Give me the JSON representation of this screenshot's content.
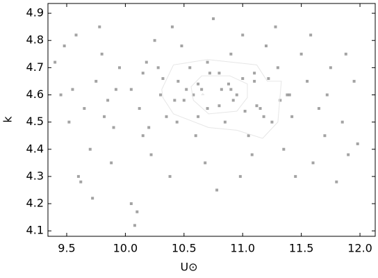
{
  "chart_data": {
    "type": "scatter",
    "xlabel": "U⊙",
    "ylabel": "k",
    "xlim": [
      9.34,
      12.13
    ],
    "ylim": [
      4.08,
      4.936
    ],
    "xticks": [
      9.5,
      {
        "value": 10.0,
        "label": "10.0"
      },
      10.5,
      {
        "value": 11.0,
        "label": "11.0"
      },
      11.5,
      {
        "value": 12.0,
        "label": "12.0"
      }
    ],
    "yticks": [
      4.1,
      4.2,
      4.3,
      4.4,
      4.5,
      4.6,
      4.7,
      4.8,
      4.9
    ],
    "points": {
      "color": "#8c8c8c",
      "x": [
        9.4,
        9.45,
        9.52,
        9.48,
        9.6,
        9.55,
        9.65,
        9.58,
        9.7,
        9.62,
        9.75,
        9.8,
        9.85,
        9.9,
        9.95,
        9.88,
        9.78,
        9.72,
        9.92,
        10.05,
        10.1,
        10.08,
        10.12,
        10.15,
        10.2,
        10.25,
        10.3,
        10.22,
        10.18,
        10.35,
        10.4,
        10.45,
        10.38,
        10.5,
        10.55,
        10.6,
        10.48,
        10.65,
        10.7,
        10.75,
        10.68,
        10.8,
        10.85,
        10.9,
        10.78,
        10.95,
        11.0,
        11.05,
        10.98,
        11.1,
        11.15,
        11.2,
        11.08,
        11.25,
        11.3,
        11.35,
        11.28,
        11.4,
        11.45,
        11.5,
        11.42,
        11.55,
        11.6,
        11.65,
        11.58,
        11.7,
        11.75,
        11.8,
        11.72,
        11.85,
        11.9,
        11.95,
        11.88,
        11.98,
        10.05,
        10.32,
        10.58,
        10.82,
        11.12,
        11.38,
        10.42,
        10.62,
        10.88,
        11.02,
        11.22,
        10.52,
        10.72,
        10.92,
        11.18,
        10.28,
        10.62,
        10.8,
        11.0,
        10.44,
        10.9,
        11.32,
        10.15,
        10.7,
        11.1,
        9.82
      ],
      "values": [
        4.72,
        4.6,
        4.5,
        4.78,
        4.3,
        4.62,
        4.55,
        4.82,
        4.4,
        4.28,
        4.65,
        4.75,
        4.58,
        4.48,
        4.7,
        4.35,
        4.85,
        4.22,
        4.62,
        4.2,
        4.17,
        4.12,
        4.55,
        4.68,
        4.48,
        4.8,
        4.6,
        4.38,
        4.72,
        4.52,
        4.85,
        4.65,
        4.3,
        4.58,
        4.7,
        4.45,
        4.78,
        4.62,
        4.55,
        4.88,
        4.35,
        4.68,
        4.5,
        4.75,
        4.25,
        4.6,
        4.82,
        4.45,
        4.3,
        4.65,
        4.55,
        4.78,
        4.38,
        4.5,
        4.7,
        4.4,
        4.85,
        4.6,
        4.3,
        4.75,
        4.52,
        4.65,
        4.35,
        4.55,
        4.82,
        4.45,
        4.7,
        4.28,
        4.6,
        4.5,
        4.38,
        4.65,
        4.75,
        4.42,
        4.62,
        4.66,
        4.6,
        4.62,
        4.56,
        4.6,
        4.58,
        4.52,
        4.64,
        4.54,
        4.66,
        4.62,
        4.68,
        4.58,
        4.52,
        4.7,
        4.64,
        4.56,
        4.66,
        4.5,
        4.62,
        4.58,
        4.45,
        4.72,
        4.68,
        4.52
      ]
    },
    "contours": [
      {
        "color": "#e6e6e6",
        "x": [
          10.31,
          10.41,
          10.7,
          11.12,
          11.21,
          11.33,
          11.3,
          11.17,
          10.95,
          10.71,
          10.41,
          10.32
        ],
        "values": [
          4.62,
          4.71,
          4.73,
          4.71,
          4.65,
          4.65,
          4.5,
          4.44,
          4.47,
          4.48,
          4.53,
          4.59
        ]
      },
      {
        "color": "#e6e6e6",
        "x": [
          10.56,
          10.65,
          10.89,
          11.04,
          11.04,
          10.95,
          10.71,
          10.58
        ],
        "values": [
          4.63,
          4.67,
          4.67,
          4.64,
          4.59,
          4.54,
          4.53,
          4.58
        ]
      },
      {
        "color": "#e6e6e6",
        "x": [
          10.65,
          10.66,
          10.67
        ],
        "values": [
          4.6,
          4.605,
          4.6
        ]
      }
    ]
  }
}
